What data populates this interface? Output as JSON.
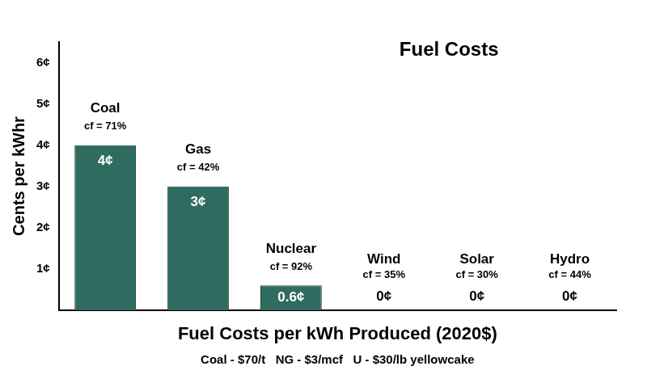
{
  "chart_data": {
    "type": "bar",
    "title": "Fuel Costs",
    "categories": [
      "Coal",
      "Gas",
      "Nuclear",
      "Wind",
      "Solar",
      "Hydro"
    ],
    "values": [
      4,
      3,
      0.6,
      0,
      0,
      0
    ],
    "value_labels": [
      "4¢",
      "3¢",
      "0.6¢",
      "0¢",
      "0¢",
      "0¢"
    ],
    "data_labels": true,
    "annotations": [
      "cf = 71%",
      "cf = 42%",
      "cf = 92%",
      "cf = 35%",
      "cf = 30%",
      "cf = 44%"
    ],
    "color": "#2f6b5f",
    "x_label": "Fuel Costs per kWh Produced (2020$)",
    "y_label": "Cents per kWhr",
    "footnote": "Coal - $70/t   NG - $3/mcf   U - $30/lb yellowcake",
    "ylim": [
      0,
      6.5
    ],
    "yticks": [
      {
        "value": 1,
        "label": "1¢"
      },
      {
        "value": 2,
        "label": "2¢"
      },
      {
        "value": 3,
        "label": "3¢"
      },
      {
        "value": 4,
        "label": "4¢"
      },
      {
        "value": 5,
        "label": "5¢"
      },
      {
        "value": 6,
        "label": "6¢"
      }
    ],
    "grid": false,
    "tick_labels": "y"
  }
}
